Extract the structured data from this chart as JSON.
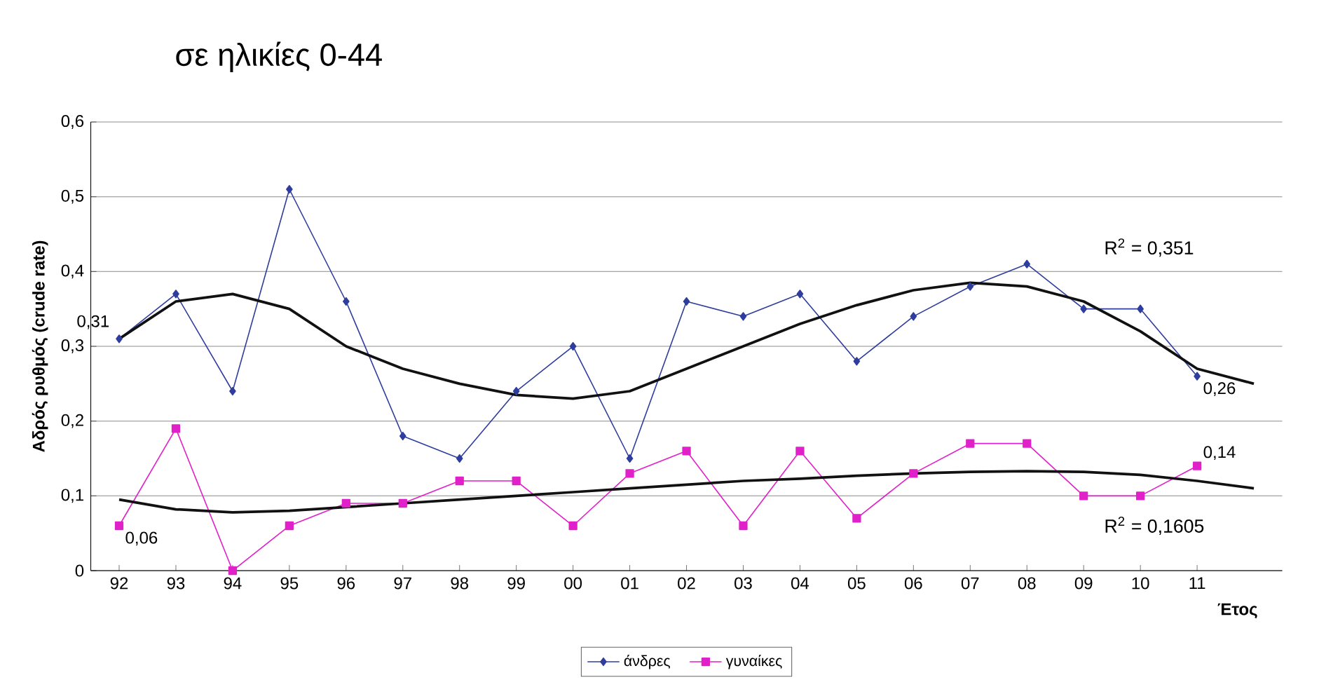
{
  "chart_data": {
    "type": "line",
    "title": "σε ηλικίες 0-44",
    "xlabel": "Έτος",
    "ylabel": "Αδρός ρυθμός (crude rate)",
    "categories": [
      "92",
      "93",
      "94",
      "95",
      "96",
      "97",
      "98",
      "99",
      "00",
      "01",
      "02",
      "03",
      "04",
      "05",
      "06",
      "07",
      "08",
      "09",
      "10",
      "11",
      null
    ],
    "ylim": [
      0,
      0.6
    ],
    "yticks": [
      {
        "value": 0,
        "label": "0"
      },
      {
        "value": 0.1,
        "label": "0,1"
      },
      {
        "value": 0.2,
        "label": "0,2"
      },
      {
        "value": 0.3,
        "label": "0,3"
      },
      {
        "value": 0.4,
        "label": "0,4"
      },
      {
        "value": 0.5,
        "label": "0,5"
      },
      {
        "value": 0.6,
        "label": "0,6"
      }
    ],
    "grid": "y",
    "legend": "bottom",
    "series": [
      {
        "name": "άνδρες",
        "color": "#2e3d9e",
        "marker": "diamond",
        "values": [
          0.31,
          0.37,
          0.24,
          0.51,
          0.36,
          0.18,
          0.15,
          0.24,
          0.3,
          0.15,
          0.36,
          0.34,
          0.37,
          0.28,
          0.34,
          0.38,
          0.41,
          0.35,
          0.35,
          0.26,
          null
        ],
        "value_labels": [
          "0,31",
          null,
          null,
          null,
          null,
          null,
          null,
          null,
          null,
          null,
          null,
          null,
          null,
          null,
          null,
          null,
          null,
          null,
          null,
          "0,26",
          null
        ]
      },
      {
        "name": "γυναίκες",
        "color": "#e020c8",
        "marker": "square",
        "values": [
          0.06,
          0.19,
          0.0,
          0.06,
          0.09,
          0.09,
          0.12,
          0.12,
          0.06,
          0.13,
          0.16,
          0.06,
          0.16,
          0.07,
          0.13,
          0.17,
          0.17,
          0.1,
          0.1,
          0.14,
          null
        ],
        "value_labels": [
          "0,06",
          null,
          null,
          null,
          null,
          null,
          null,
          null,
          null,
          null,
          null,
          null,
          null,
          null,
          null,
          null,
          null,
          null,
          null,
          "0,14",
          null
        ]
      },
      {
        "color": "#111111",
        "marker": "none",
        "values": [
          0.31,
          0.36,
          0.37,
          0.35,
          0.3,
          0.27,
          0.25,
          0.235,
          0.23,
          0.24,
          0.27,
          0.3,
          0.33,
          0.355,
          0.375,
          0.385,
          0.38,
          0.36,
          0.32,
          0.27,
          0.25
        ]
      },
      {
        "color": "#111111",
        "marker": "none",
        "values": [
          0.095,
          0.082,
          0.078,
          0.08,
          0.085,
          0.09,
          0.095,
          0.1,
          0.105,
          0.11,
          0.115,
          0.12,
          0.123,
          0.127,
          0.13,
          0.132,
          0.133,
          0.132,
          0.128,
          0.12,
          0.11
        ]
      }
    ],
    "annotations": [
      "R$^{2}$ = 0,351",
      "R$^{2}$ = 0,1605"
    ]
  }
}
